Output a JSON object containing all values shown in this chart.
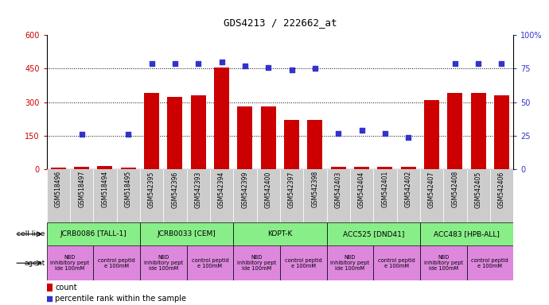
{
  "title": "GDS4213 / 222662_at",
  "samples": [
    "GSM518496",
    "GSM518497",
    "GSM518494",
    "GSM518495",
    "GSM542395",
    "GSM542396",
    "GSM542393",
    "GSM542394",
    "GSM542399",
    "GSM542400",
    "GSM542397",
    "GSM542398",
    "GSM542403",
    "GSM542404",
    "GSM542401",
    "GSM542402",
    "GSM542407",
    "GSM542408",
    "GSM542405",
    "GSM542406"
  ],
  "counts": [
    8,
    12,
    15,
    8,
    340,
    325,
    330,
    455,
    280,
    280,
    220,
    220,
    10,
    10,
    10,
    10,
    310,
    340,
    340,
    330
  ],
  "percentiles": [
    null,
    26,
    null,
    26,
    79,
    79,
    79,
    80,
    77,
    76,
    74,
    75,
    27,
    29,
    27,
    24,
    null,
    79,
    79,
    79
  ],
  "cell_lines": [
    {
      "label": "JCRB0086 [TALL-1]",
      "start": 0,
      "end": 4,
      "color": "#90EE90"
    },
    {
      "label": "JCRB0033 [CEM]",
      "start": 4,
      "end": 8,
      "color": "#90EE90"
    },
    {
      "label": "KOPT-K",
      "start": 8,
      "end": 12,
      "color": "#90EE90"
    },
    {
      "label": "ACC525 [DND41]",
      "start": 12,
      "end": 16,
      "color": "#90EE90"
    },
    {
      "label": "ACC483 [HPB-ALL]",
      "start": 16,
      "end": 20,
      "color": "#90EE90"
    }
  ],
  "agents": [
    {
      "label": "NBD\ninhibitory pept\nide 100mM",
      "start": 0,
      "end": 2
    },
    {
      "label": "control peptid\ne 100mM",
      "start": 2,
      "end": 4
    },
    {
      "label": "NBD\ninhibitory pept\nide 100mM",
      "start": 4,
      "end": 6
    },
    {
      "label": "control peptid\ne 100mM",
      "start": 6,
      "end": 8
    },
    {
      "label": "NBD\ninhibitory pept\nide 100mM",
      "start": 8,
      "end": 10
    },
    {
      "label": "control peptid\ne 100mM",
      "start": 10,
      "end": 12
    },
    {
      "label": "NBD\ninhibitory pept\nide 100mM",
      "start": 12,
      "end": 14
    },
    {
      "label": "control peptid\ne 100mM",
      "start": 14,
      "end": 16
    },
    {
      "label": "NBD\ninhibitory pept\nide 100mM",
      "start": 16,
      "end": 18
    },
    {
      "label": "control peptid\ne 100mM",
      "start": 18,
      "end": 20
    }
  ],
  "bar_color": "#CC0000",
  "scatter_color": "#3333CC",
  "ylim_left": [
    0,
    600
  ],
  "ylim_right": [
    0,
    100
  ],
  "yticks_left": [
    0,
    150,
    300,
    450,
    600
  ],
  "yticks_right": [
    0,
    25,
    50,
    75,
    100
  ],
  "bar_width": 0.65,
  "agent_color": "#DD88DD",
  "cell_line_color": "#88EE88",
  "xtick_bg": "#CCCCCC",
  "label_left_color": "#AAAAAA"
}
